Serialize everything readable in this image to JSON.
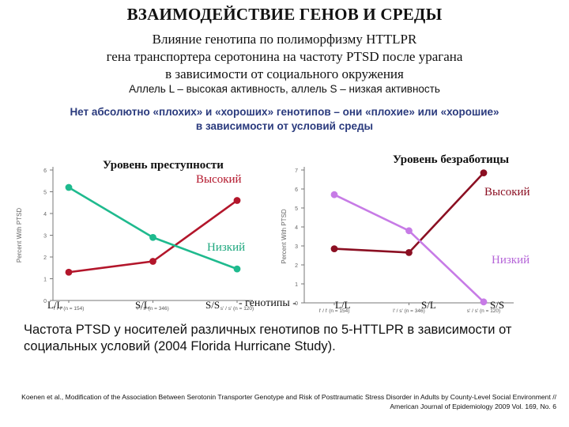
{
  "header": {
    "title": "ВЗАИМОДЕЙСТВИЕ ГЕНОВ И СРЕДЫ",
    "subtitle_lines": [
      "Влияние генотипа по полиморфизму HTTLPR",
      "гена транспортера серотонина  на частоту PTSD после урагана",
      "в зависимости от социального окружения"
    ],
    "alleles": "Аллель L – высокая активность, аллель S – низкая активность",
    "highlight_lines": [
      "Нет абсолютно «плохих» и «хороших» генотипов – они «плохие» или «хорошие»",
      "в зависимости от условий среды"
    ]
  },
  "chart_data": [
    {
      "type": "line",
      "title": "Уровень преступности",
      "ylabel": "Percent With PTSD",
      "ylim": [
        0,
        6
      ],
      "yticks": [
        "0",
        "1",
        "2",
        "3",
        "4",
        "5",
        "6"
      ],
      "categories": [
        "l' / l' (n = 154)",
        "l' / s' (n = 346)",
        "s' / s' (n = 120)"
      ],
      "series": [
        {
          "name": "Высокий",
          "color": "#b3162b",
          "values": [
            1.3,
            1.8,
            4.6
          ]
        },
        {
          "name": "Низкий",
          "color": "#1fba8e",
          "values": [
            5.2,
            2.9,
            1.45
          ]
        }
      ]
    },
    {
      "type": "line",
      "title": "Уровень безработицы",
      "ylabel": "Percent With PTSD",
      "ylim": [
        0,
        7
      ],
      "yticks": [
        "0",
        "1",
        "2",
        "3",
        "4",
        "5",
        "6",
        "7"
      ],
      "categories": [
        "l' / l' (n = 154)",
        "l' / s' (n = 346)",
        "s' / s' (n = 120)"
      ],
      "series": [
        {
          "name": "Высокий",
          "color": "#8b0f22",
          "values": [
            2.85,
            2.65,
            6.85
          ]
        },
        {
          "name": "Низкий",
          "color": "#c77be6",
          "values": [
            5.7,
            3.8,
            0.05
          ]
        }
      ]
    }
  ],
  "genotype_labels": {
    "left": [
      "L/L",
      "S/L",
      "S/S"
    ],
    "middle": "- генотипы -",
    "right": [
      "L/L",
      "S/L",
      "S/S"
    ]
  },
  "caption": "Частота PTSD у носителей различных генотипов по 5-HTTLPR в зависимости от социальных условий  (2004 Florida Hurricane Study).",
  "reference": "Koenen et al., Modification of the Association Between Serotonin Transporter Genotype and Risk of Posttraumatic Stress Disorder in Adults by County-Level Social Environment // American Journal of Epidemiology 2009 Vol. 169, No. 6"
}
